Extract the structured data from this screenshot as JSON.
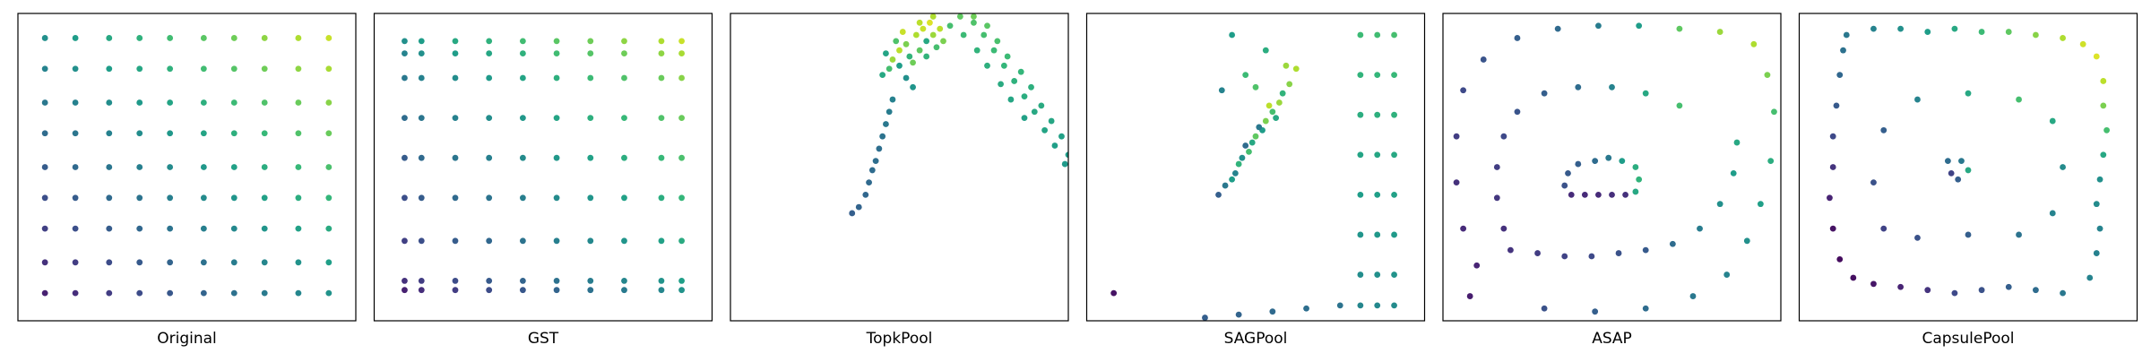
{
  "chart_data": [
    {
      "type": "scatter",
      "xlabel": "Original",
      "colormap": "viridis",
      "xlim": [
        0,
        100
      ],
      "ylim": [
        0,
        100
      ],
      "clim": [
        0,
        100
      ],
      "x": [
        8,
        17,
        27,
        36,
        45,
        55,
        64,
        73,
        83,
        92,
        8,
        17,
        27,
        36,
        45,
        55,
        64,
        73,
        83,
        92,
        8,
        17,
        27,
        36,
        45,
        55,
        64,
        73,
        83,
        92,
        8,
        17,
        27,
        36,
        45,
        55,
        64,
        73,
        83,
        92,
        8,
        17,
        27,
        36,
        45,
        55,
        64,
        73,
        83,
        92,
        8,
        17,
        27,
        36,
        45,
        55,
        64,
        73,
        83,
        92,
        8,
        17,
        27,
        36,
        45,
        55,
        64,
        73,
        83,
        92,
        8,
        17,
        27,
        36,
        45,
        55,
        64,
        73,
        83,
        92,
        8,
        17,
        27,
        36,
        45,
        55,
        64,
        73,
        83,
        92
      ],
      "y": [
        9,
        9,
        9,
        9,
        9,
        9,
        9,
        9,
        9,
        9,
        19,
        19,
        19,
        19,
        19,
        19,
        19,
        19,
        19,
        19,
        30,
        30,
        30,
        30,
        30,
        30,
        30,
        30,
        30,
        30,
        40,
        40,
        40,
        40,
        40,
        40,
        40,
        40,
        40,
        40,
        50,
        50,
        50,
        50,
        50,
        50,
        50,
        50,
        50,
        50,
        61,
        61,
        61,
        61,
        61,
        61,
        61,
        61,
        61,
        61,
        71,
        71,
        71,
        71,
        71,
        71,
        71,
        71,
        71,
        71,
        82,
        82,
        82,
        82,
        82,
        82,
        82,
        82,
        82,
        82,
        92,
        92,
        92,
        92,
        92,
        92,
        92,
        92,
        92,
        92
      ],
      "color_values": [
        9,
        13,
        18,
        23,
        27,
        32,
        37,
        41,
        46,
        51,
        14,
        18,
        23,
        28,
        32,
        37,
        42,
        46,
        51,
        56,
        19,
        24,
        29,
        33,
        38,
        43,
        47,
        52,
        57,
        61,
        24,
        29,
        34,
        38,
        43,
        48,
        52,
        57,
        62,
        66,
        29,
        34,
        39,
        43,
        48,
        53,
        57,
        62,
        67,
        71,
        35,
        39,
        44,
        49,
        53,
        58,
        63,
        67,
        72,
        77,
        40,
        44,
        49,
        54,
        58,
        63,
        68,
        72,
        77,
        82,
        45,
        50,
        55,
        59,
        64,
        69,
        73,
        78,
        83,
        87,
        50,
        55,
        60,
        64,
        69,
        74,
        78,
        83,
        88,
        92
      ]
    },
    {
      "type": "scatter",
      "xlabel": "GST",
      "colormap": "viridis",
      "xlim": [
        0,
        100
      ],
      "ylim": [
        0,
        100
      ],
      "clim": [
        0,
        100
      ],
      "x": [
        9,
        14,
        24,
        34,
        44,
        54,
        64,
        74,
        85,
        91,
        9,
        14,
        24,
        34,
        44,
        54,
        64,
        74,
        85,
        91,
        9,
        14,
        24,
        34,
        44,
        54,
        64,
        74,
        85,
        91,
        9,
        14,
        24,
        34,
        44,
        54,
        64,
        74,
        85,
        91,
        9,
        14,
        24,
        34,
        44,
        54,
        64,
        74,
        85,
        91,
        9,
        14,
        24,
        34,
        44,
        54,
        64,
        74,
        85,
        91,
        9,
        14,
        24,
        34,
        44,
        54,
        64,
        74,
        85,
        91,
        9,
        14,
        24,
        34,
        44,
        54,
        64,
        74,
        85,
        91,
        9,
        14,
        24,
        34,
        44,
        54,
        64,
        74,
        85,
        91
      ],
      "y": [
        10,
        10,
        10,
        10,
        10,
        10,
        10,
        10,
        10,
        10,
        13,
        13,
        13,
        13,
        13,
        13,
        13,
        13,
        13,
        13,
        26,
        26,
        26,
        26,
        26,
        26,
        26,
        26,
        26,
        26,
        40,
        40,
        40,
        40,
        40,
        40,
        40,
        40,
        40,
        40,
        53,
        53,
        53,
        53,
        53,
        53,
        53,
        53,
        53,
        53,
        66,
        66,
        66,
        66,
        66,
        66,
        66,
        66,
        66,
        66,
        79,
        79,
        79,
        79,
        79,
        79,
        79,
        79,
        79,
        79,
        87,
        87,
        87,
        87,
        87,
        87,
        87,
        87,
        87,
        87,
        91,
        91,
        91,
        91,
        91,
        91,
        91,
        91,
        91,
        91
      ],
      "color_values": [
        9,
        13,
        18,
        23,
        27,
        32,
        37,
        41,
        46,
        51,
        14,
        18,
        23,
        28,
        32,
        37,
        42,
        46,
        51,
        56,
        19,
        24,
        29,
        33,
        38,
        43,
        47,
        52,
        57,
        61,
        24,
        29,
        34,
        38,
        43,
        48,
        52,
        57,
        62,
        66,
        29,
        34,
        39,
        43,
        48,
        53,
        57,
        62,
        67,
        71,
        35,
        39,
        44,
        49,
        53,
        58,
        63,
        67,
        72,
        77,
        40,
        44,
        49,
        54,
        58,
        63,
        68,
        72,
        77,
        82,
        45,
        50,
        55,
        59,
        64,
        69,
        73,
        78,
        83,
        87,
        50,
        55,
        60,
        64,
        69,
        74,
        78,
        83,
        88,
        92
      ]
    },
    {
      "type": "scatter",
      "xlabel": "TopkPool",
      "colormap": "viridis",
      "xlim": [
        0,
        100
      ],
      "ylim": [
        0,
        100
      ],
      "clim": [
        0,
        100
      ],
      "x": [
        36,
        38,
        40,
        41,
        42,
        43,
        44,
        45,
        46,
        47,
        48,
        45,
        47,
        48,
        50,
        52,
        53,
        55,
        56,
        57,
        58,
        59,
        60,
        61,
        62,
        63,
        50,
        52,
        54,
        56,
        58,
        49,
        51,
        60,
        46,
        54,
        68,
        72,
        75,
        78,
        81,
        84,
        87,
        90,
        93,
        96,
        99,
        72,
        76,
        79,
        82,
        86,
        89,
        92,
        95,
        98,
        100,
        65,
        69,
        73,
        76,
        80,
        83,
        87
      ],
      "y": [
        35,
        37,
        41,
        45,
        49,
        52,
        56,
        60,
        64,
        68,
        72,
        80,
        82,
        85,
        88,
        90,
        86,
        93,
        88,
        95,
        91,
        97,
        93,
        89,
        95,
        91,
        83,
        79,
        84,
        97,
        86,
        91,
        94,
        99,
        87,
        76,
        99,
        97,
        93,
        88,
        83,
        78,
        73,
        68,
        62,
        57,
        51,
        99,
        96,
        91,
        86,
        81,
        76,
        70,
        65,
        60,
        54,
        96,
        93,
        88,
        83,
        77,
        72,
        66
      ],
      "color_values": [
        30,
        32,
        33,
        34,
        35,
        36,
        36,
        38,
        40,
        42,
        44,
        60,
        70,
        85,
        90,
        80,
        65,
        88,
        75,
        92,
        60,
        95,
        85,
        70,
        90,
        80,
        55,
        50,
        78,
        90,
        65,
        72,
        92,
        88,
        58,
        52,
        75,
        72,
        70,
        68,
        66,
        64,
        62,
        60,
        58,
        56,
        54,
        78,
        74,
        71,
        68,
        66,
        63,
        61,
        59,
        57,
        55,
        70,
        68,
        65,
        63,
        61,
        59,
        57
      ]
    },
    {
      "type": "scatter",
      "xlabel": "SAGPool",
      "colormap": "viridis",
      "xlim": [
        0,
        100
      ],
      "ylim": [
        0,
        100
      ],
      "clim": [
        0,
        100
      ],
      "x": [
        39,
        41,
        43,
        44,
        45,
        46,
        48,
        49,
        50,
        52,
        53,
        55,
        57,
        58,
        60,
        62,
        47,
        51,
        54,
        56,
        50,
        43,
        40,
        53,
        59,
        47,
        81,
        81,
        81,
        81,
        81,
        81,
        81,
        81,
        86,
        86,
        86,
        86,
        86,
        86,
        86,
        86,
        91,
        91,
        91,
        91,
        91,
        91,
        91,
        91,
        35,
        45,
        55,
        65,
        75,
        8
      ],
      "y": [
        41,
        44,
        46,
        48,
        51,
        53,
        55,
        58,
        60,
        62,
        65,
        68,
        71,
        74,
        77,
        82,
        57,
        63,
        70,
        66,
        76,
        93,
        75,
        88,
        83,
        80,
        93,
        80,
        67,
        54,
        41,
        28,
        15,
        5,
        93,
        80,
        67,
        54,
        41,
        28,
        15,
        5,
        93,
        80,
        67,
        54,
        41,
        28,
        15,
        5,
        1,
        2,
        3,
        4,
        5,
        9
      ],
      "color_values": [
        30,
        40,
        55,
        45,
        65,
        50,
        70,
        60,
        75,
        55,
        80,
        70,
        85,
        65,
        82,
        88,
        35,
        40,
        90,
        60,
        72,
        55,
        45,
        62,
        85,
        68,
        68,
        65,
        62,
        58,
        55,
        52,
        49,
        46,
        69,
        66,
        63,
        59,
        56,
        53,
        50,
        47,
        70,
        67,
        64,
        60,
        57,
        54,
        51,
        48,
        30,
        32,
        34,
        36,
        38,
        5
      ]
    },
    {
      "type": "scatter",
      "xlabel": "ASAP",
      "colormap": "viridis",
      "xlim": [
        0,
        100
      ],
      "ylim": [
        0,
        100
      ],
      "clim": [
        0,
        100
      ],
      "x": [
        38,
        42,
        46,
        50,
        54,
        57,
        58,
        57,
        36,
        37,
        40,
        45,
        49,
        53,
        20,
        28,
        36,
        44,
        52,
        60,
        68,
        76,
        82,
        86,
        87,
        18,
        16,
        16,
        18,
        22,
        30,
        40,
        50,
        60,
        70,
        8,
        10,
        6,
        4,
        4,
        6,
        12,
        22,
        34,
        46,
        58,
        70,
        82,
        92,
        96,
        98,
        97,
        94,
        90,
        84,
        74,
        60,
        45,
        30
      ],
      "y": [
        41,
        41,
        41,
        41,
        41,
        42,
        46,
        50,
        44,
        48,
        51,
        52,
        53,
        52,
        23,
        22,
        21,
        21,
        22,
        23,
        25,
        30,
        38,
        48,
        58,
        30,
        40,
        50,
        60,
        68,
        74,
        76,
        76,
        74,
        70,
        8,
        18,
        30,
        45,
        60,
        75,
        85,
        92,
        95,
        96,
        96,
        95,
        94,
        90,
        80,
        68,
        52,
        38,
        26,
        15,
        8,
        4,
        3,
        4
      ],
      "color_values": [
        12,
        12,
        12,
        13,
        14,
        60,
        65,
        62,
        25,
        28,
        30,
        35,
        40,
        55,
        15,
        18,
        20,
        22,
        25,
        28,
        35,
        42,
        50,
        55,
        60,
        14,
        16,
        18,
        22,
        26,
        30,
        35,
        45,
        60,
        70,
        8,
        10,
        12,
        14,
        18,
        22,
        26,
        30,
        34,
        42,
        55,
        75,
        85,
        88,
        80,
        70,
        62,
        56,
        50,
        45,
        40,
        35,
        30,
        25
      ]
    },
    {
      "type": "scatter",
      "xlabel": "CapsulePool",
      "colormap": "viridis",
      "xlim": [
        0,
        100
      ],
      "ylim": [
        0,
        100
      ],
      "clim": [
        0,
        100
      ],
      "x": [
        14,
        22,
        30,
        38,
        46,
        54,
        62,
        70,
        78,
        84,
        88,
        90,
        90,
        91,
        90,
        89,
        88,
        89,
        88,
        86,
        78,
        70,
        62,
        54,
        46,
        38,
        30,
        22,
        16,
        12,
        10,
        9,
        10,
        10,
        11,
        12,
        13,
        25,
        35,
        50,
        65,
        75,
        78,
        75,
        65,
        50,
        35,
        25,
        22,
        45,
        48,
        50,
        47,
        44
      ],
      "y": [
        93,
        95,
        95,
        94,
        95,
        94,
        94,
        93,
        92,
        90,
        86,
        78,
        70,
        62,
        54,
        46,
        38,
        30,
        22,
        14,
        9,
        10,
        11,
        10,
        9,
        10,
        11,
        12,
        14,
        20,
        30,
        40,
        50,
        60,
        70,
        80,
        88,
        30,
        27,
        28,
        28,
        35,
        50,
        65,
        72,
        74,
        72,
        62,
        45,
        48,
        52,
        49,
        46,
        52
      ],
      "color_values": [
        40,
        45,
        50,
        55,
        60,
        68,
        75,
        82,
        88,
        93,
        95,
        90,
        80,
        70,
        60,
        50,
        48,
        45,
        44,
        45,
        40,
        35,
        30,
        25,
        22,
        15,
        10,
        6,
        4,
        3,
        5,
        10,
        15,
        22,
        28,
        33,
        37,
        20,
        25,
        30,
        38,
        45,
        48,
        60,
        70,
        60,
        45,
        30,
        25,
        20,
        40,
        60,
        30,
        35
      ]
    }
  ]
}
